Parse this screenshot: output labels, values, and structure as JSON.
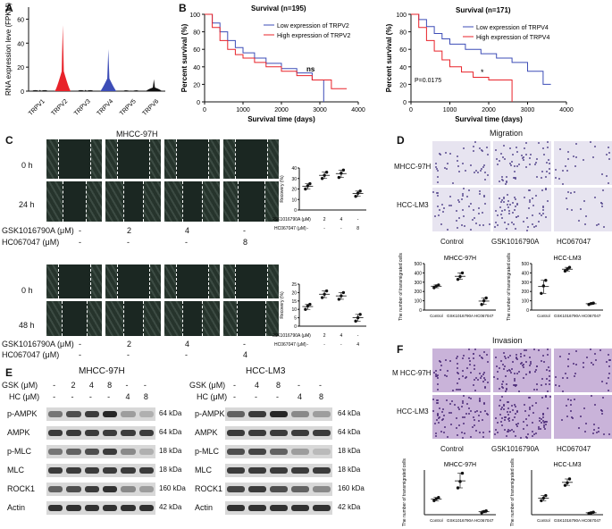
{
  "panels": {
    "A": "A",
    "B": "B",
    "C": "C",
    "D": "D",
    "E": "E",
    "F": "F"
  },
  "panel_a": {
    "ylabel": "RNA expression leve (FPKM)",
    "yticks": [
      "0",
      "20",
      "40",
      "60"
    ],
    "genes": [
      "TRPV1",
      "TRPV2",
      "TRPV3",
      "TRPV4",
      "TRPV5",
      "TRPV6"
    ]
  },
  "panel_b": {
    "left": {
      "title": "Survival (n=195)",
      "legend_low": "Low expression of TRPV2",
      "legend_high": "High expression of TRPV2",
      "annotation": "ns",
      "xlabel": "Survival time (days)",
      "ylabel": "Percent survival (%)",
      "xticks": [
        "0",
        "1000",
        "2000",
        "3000",
        "4000"
      ],
      "yticks": [
        "0",
        "20",
        "40",
        "60",
        "80",
        "100"
      ]
    },
    "right": {
      "title": "Survival (n=171)",
      "legend_low": "Low expression of TRPV4",
      "legend_high": "High expression of TRPV4",
      "pvalue": "P=0.0175",
      "star": "*",
      "xlabel": "Survival time (days)",
      "ylabel": "Percent survival (%)",
      "xticks": [
        "0",
        "1000",
        "2000",
        "3000",
        "4000"
      ],
      "yticks": [
        "0",
        "20",
        "40",
        "60",
        "80",
        "100"
      ]
    }
  },
  "panel_c": {
    "title": "MHCC-97H",
    "top": {
      "row1": "0 h",
      "row2": "24 h",
      "treat1_label": "GSK1016790A (μM)",
      "treat1": [
        "-",
        "2",
        "4",
        "-"
      ],
      "treat2_label": "HC067047 (μM)",
      "treat2": [
        "-",
        "-",
        "-",
        "8"
      ],
      "plot_ylabel": "Recovery (%)",
      "plot_yticks": [
        "0",
        "10",
        "20",
        "30",
        "40"
      ],
      "plot_t1_label": "GSK1016790A (μM)",
      "plot_t1": [
        "-",
        "2",
        "4",
        "-"
      ],
      "plot_t2_label": "HC067047 (μM)",
      "plot_t2": [
        "-",
        "-",
        "-",
        "8"
      ]
    },
    "bottom": {
      "row1": "0 h",
      "row2": "48 h",
      "treat1_label": "GSK1016790A (μM)",
      "treat1": [
        "-",
        "2",
        "4",
        "-"
      ],
      "treat2_label": "HC067047 (μM)",
      "treat2": [
        "-",
        "-",
        "-",
        "4"
      ],
      "plot_ylabel": "Recovery (%)",
      "plot_yticks": [
        "0",
        "5",
        "10",
        "15",
        "20",
        "25"
      ],
      "plot_t1_label": "GSK1016790A (μM)",
      "plot_t1": [
        "-",
        "2",
        "4",
        "-"
      ],
      "plot_t2_label": "HC067047 (μM)",
      "plot_t2": [
        "-",
        "-",
        "-",
        "4"
      ]
    }
  },
  "panel_d": {
    "title": "Migration",
    "row1": "MHCC-97H",
    "row2": "HCC-LM3",
    "cols": [
      "Control",
      "GSK1016790A",
      "HC067047"
    ],
    "plot1": {
      "title": "MHCC-97H",
      "ylabel": "The number of transmigrated cells",
      "yticks": [
        "0",
        "100",
        "200",
        "300",
        "400",
        "500"
      ],
      "cats": [
        "Control",
        "GSK1016790A",
        "HC067047"
      ]
    },
    "plot2": {
      "title": "HCC-LM3",
      "ylabel": "The number of transmigrated cells",
      "yticks": [
        "0",
        "100",
        "200",
        "300",
        "400",
        "500"
      ],
      "cats": [
        "Control",
        "GSK1016790A",
        "HC067047"
      ]
    }
  },
  "panel_e": {
    "left": {
      "title": "MHCC-97H",
      "gsk_label": "GSK (μM)",
      "gsk": [
        "-",
        "2",
        "4",
        "8",
        "-",
        "-"
      ],
      "hc_label": "HC (μM)",
      "hc": [
        "-",
        "-",
        "-",
        "-",
        "4",
        "8"
      ],
      "rows": [
        "p-AMPK",
        "AMPK",
        "p-MLC",
        "MLC",
        "ROCK1",
        "Actin"
      ],
      "kda": [
        "64 kDa",
        "64 kDa",
        "18 kDa",
        "18 kDa",
        "160 kDa",
        "42 kDa"
      ]
    },
    "right": {
      "title": "HCC-LM3",
      "gsk_label": "GSK (μM)",
      "gsk": [
        "-",
        "4",
        "8",
        "-",
        "-"
      ],
      "hc_label": "HC (μM)",
      "hc": [
        "-",
        "-",
        "-",
        "4",
        "8"
      ],
      "rows": [
        "p-AMPK",
        "AMPK",
        "p-MLC",
        "MLC",
        "ROCK1",
        "Actin"
      ],
      "kda": [
        "64 kDa",
        "64 kDa",
        "18 kDa",
        "18 kDa",
        "160 kDa",
        "42 kDa"
      ]
    }
  },
  "panel_f": {
    "title": "Invasion",
    "row1": "M HCC-97H",
    "row2": "HCC-LM3",
    "cols": [
      "Control",
      "GSK1016790A",
      "HC067047"
    ],
    "plot1": {
      "title": "MHCC-97H",
      "ylabel": "The number of transmigrated cells",
      "cats": [
        "Control",
        "GSK1016790A",
        "HC067047"
      ]
    },
    "plot2": {
      "title": "HCC-LM3",
      "ylabel": "The number of transmigrated cells",
      "cats": [
        "Control",
        "GSK1016790A",
        "HC067047"
      ]
    }
  },
  "colors": {
    "red": "#e8232a",
    "blue": "#3d4db7",
    "black": "#111111",
    "migration_stain": "#b8b4d4",
    "invasion_stain": "#8a5aa8"
  },
  "chart_data": [
    {
      "type": "bar",
      "id": "A",
      "categories": [
        "TRPV1",
        "TRPV2",
        "TRPV3",
        "TRPV4",
        "TRPV5",
        "TRPV6"
      ],
      "values": [
        1,
        55,
        1,
        35,
        0.5,
        10
      ],
      "series_colors": [
        "#111111",
        "#e8232a",
        "#111111",
        "#3d4db7",
        "#111111",
        "#111111"
      ],
      "ylim": [
        0,
        70
      ]
    },
    {
      "type": "line",
      "id": "B-left",
      "xlim": [
        0,
        4000
      ],
      "ylim": [
        0,
        100
      ],
      "series": [
        {
          "name": "Low expression of TRPV2",
          "color": "#3d4db7",
          "x": [
            0,
            200,
            400,
            600,
            800,
            1000,
            1300,
            1600,
            2000,
            2400,
            2800,
            3100
          ],
          "y": [
            100,
            90,
            80,
            70,
            62,
            56,
            50,
            44,
            38,
            33,
            25,
            0
          ]
        },
        {
          "name": "High expression of TRPV2",
          "color": "#e8232a",
          "x": [
            0,
            200,
            400,
            600,
            800,
            1000,
            1300,
            1600,
            2000,
            2400,
            2800,
            3300,
            3700
          ],
          "y": [
            100,
            85,
            70,
            60,
            54,
            50,
            45,
            40,
            35,
            30,
            25,
            15,
            15
          ]
        }
      ]
    },
    {
      "type": "line",
      "id": "B-right",
      "xlim": [
        0,
        4000
      ],
      "ylim": [
        0,
        100
      ],
      "series": [
        {
          "name": "Low expression of TRPV4",
          "color": "#3d4db7",
          "x": [
            0,
            200,
            400,
            600,
            800,
            1000,
            1400,
            1800,
            2200,
            2600,
            3000,
            3400,
            3600
          ],
          "y": [
            100,
            94,
            86,
            78,
            72,
            66,
            60,
            55,
            50,
            45,
            35,
            20,
            20
          ]
        },
        {
          "name": "High expression of TRPV4",
          "color": "#e8232a",
          "x": [
            0,
            200,
            400,
            600,
            800,
            1000,
            1300,
            1600,
            2000,
            2400,
            2600
          ],
          "y": [
            100,
            85,
            70,
            58,
            48,
            40,
            34,
            28,
            25,
            25,
            0
          ]
        }
      ]
    },
    {
      "type": "scatter",
      "id": "C-top",
      "categories": [
        "1",
        "2",
        "3",
        "4"
      ],
      "values": [
        [
          20,
          23,
          25
        ],
        [
          30,
          33,
          36
        ],
        [
          31,
          35,
          38
        ],
        [
          13,
          16,
          18
        ]
      ],
      "ylim": [
        0,
        40
      ]
    },
    {
      "type": "scatter",
      "id": "C-bottom",
      "categories": [
        "1",
        "2",
        "3",
        "4"
      ],
      "values": [
        [
          10,
          12,
          13
        ],
        [
          17,
          19,
          21
        ],
        [
          16,
          18,
          20
        ],
        [
          3,
          5,
          7
        ]
      ],
      "ylim": [
        0,
        25
      ]
    },
    {
      "type": "scatter",
      "id": "D-1",
      "categories": [
        "Control",
        "GSK1016790A",
        "HC067047"
      ],
      "values": [
        [
          240,
          260,
          270
        ],
        [
          330,
          360,
          400
        ],
        [
          60,
          100,
          130
        ]
      ],
      "ylim": [
        0,
        500
      ]
    },
    {
      "type": "scatter",
      "id": "D-2",
      "categories": [
        "Control",
        "GSK1016790A",
        "HC067047"
      ],
      "values": [
        [
          180,
          260,
          320
        ],
        [
          420,
          440,
          460
        ],
        [
          60,
          70,
          75
        ]
      ],
      "ylim": [
        0,
        500
      ]
    },
    {
      "type": "scatter",
      "id": "F-1",
      "categories": [
        "Control",
        "GSK1016790A",
        "HC067047"
      ],
      "values": [
        [
          220,
          250,
          270
        ],
        [
          420,
          520,
          650
        ],
        [
          30,
          50,
          60
        ]
      ],
      "ylim": [
        0,
        700
      ]
    },
    {
      "type": "scatter",
      "id": "F-2",
      "categories": [
        "Control",
        "GSK1016790A",
        "HC067047"
      ],
      "values": [
        [
          220,
          260,
          300
        ],
        [
          460,
          500,
          560
        ],
        [
          20,
          30,
          40
        ]
      ],
      "ylim": [
        0,
        700
      ]
    }
  ]
}
